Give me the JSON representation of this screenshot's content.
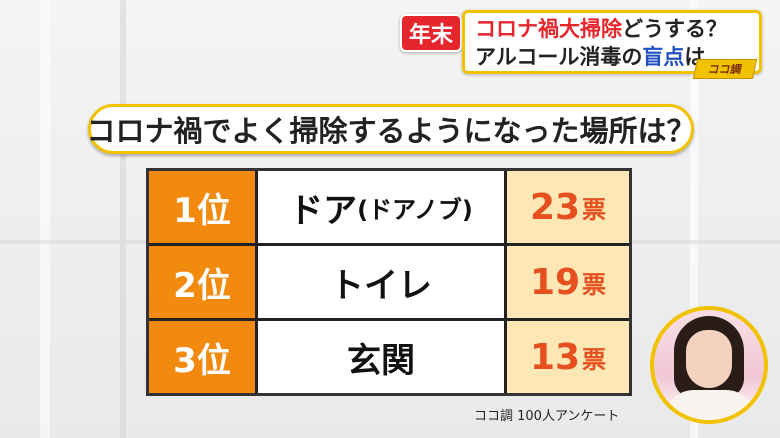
{
  "headline": {
    "tag": "年末",
    "line1_red": "コロナ禍大掃除",
    "line1_rest": "どうする？",
    "line2_a": "アルコール消毒の",
    "line2_blue": "盲点",
    "line2_b": "は",
    "logo": "ココ調"
  },
  "question": "コロナ禍でよく掃除するようになった場所は？",
  "ranking": [
    {
      "rank": "1位",
      "place": "ドア",
      "place_note": "(ドアノブ)",
      "votes": "23",
      "unit": "票"
    },
    {
      "rank": "2位",
      "place": "トイレ",
      "place_note": "",
      "votes": "19",
      "unit": "票"
    },
    {
      "rank": "3位",
      "place": "玄関",
      "place_note": "",
      "votes": "13",
      "unit": "票"
    }
  ],
  "source": "ココ調 100人アンケート",
  "colors": {
    "accent_red": "#e5262c",
    "accent_yellow": "#f1c200",
    "rank_orange": "#f18a0f",
    "vote_text": "#e5501e",
    "highlight_blue": "#1f4fc4"
  }
}
